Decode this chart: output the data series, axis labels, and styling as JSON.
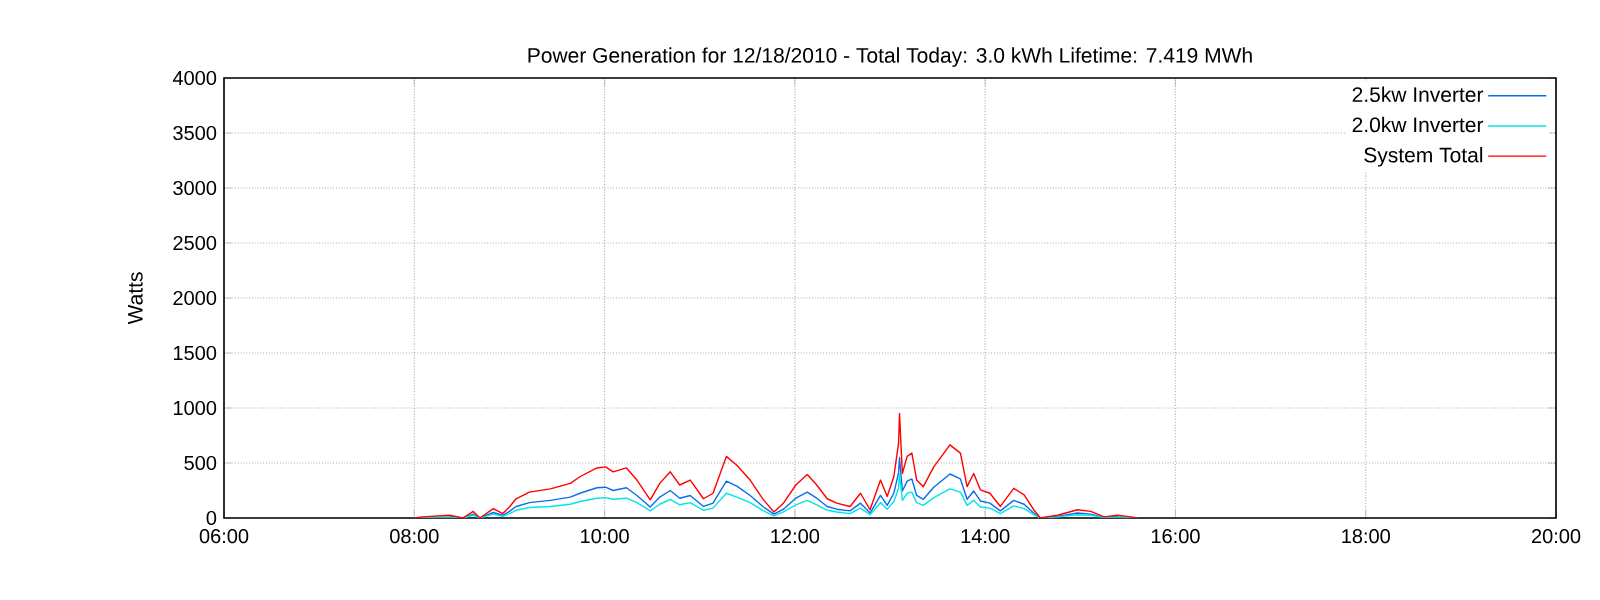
{
  "chart_data": {
    "type": "line",
    "title": "Power Generation for 12/18/2010 - Total Today: 3.0 kWh   Lifetime: 7.419 MWh",
    "ylabel": "Watts",
    "x": [
      8.0,
      8.09,
      8.37,
      8.51,
      8.62,
      8.69,
      8.83,
      8.93,
      9.0,
      9.07,
      9.21,
      9.43,
      9.64,
      9.74,
      9.92,
      10.01,
      10.09,
      10.23,
      10.34,
      10.48,
      10.58,
      10.69,
      10.79,
      10.9,
      11.04,
      11.14,
      11.28,
      11.39,
      11.53,
      11.67,
      11.78,
      11.88,
      12.01,
      12.13,
      12.23,
      12.34,
      12.44,
      12.58,
      12.69,
      12.79,
      12.9,
      12.97,
      13.04,
      13.09,
      13.1,
      13.13,
      13.18,
      13.23,
      13.28,
      13.35,
      13.46,
      13.63,
      13.74,
      13.81,
      13.88,
      13.95,
      14.05,
      14.16,
      14.3,
      14.41,
      14.51,
      14.58,
      14.76,
      14.97,
      15.11,
      15.25,
      15.39,
      15.53,
      15.6
    ],
    "series": [
      {
        "name": "2.5kw Inverter",
        "color": "#0a6cf0",
        "values": [
          null,
          null,
          15,
          0,
          35,
          0,
          50,
          25,
          60,
          105,
          140,
          160,
          190,
          225,
          275,
          280,
          250,
          275,
          205,
          100,
          190,
          250,
          180,
          205,
          105,
          135,
          335,
          290,
          205,
          100,
          35,
          80,
          180,
          235,
          180,
          105,
          80,
          65,
          135,
          45,
          205,
          115,
          225,
          410,
          550,
          245,
          335,
          355,
          205,
          170,
          280,
          400,
          355,
          170,
          245,
          155,
          135,
          65,
          160,
          125,
          45,
          0,
          15,
          45,
          35,
          5,
          15,
          null,
          null
        ]
      },
      {
        "name": "2.0kw Inverter",
        "color": "#00e5e5",
        "values": [
          0,
          5,
          10,
          0,
          25,
          0,
          35,
          15,
          40,
          70,
          95,
          105,
          125,
          150,
          180,
          185,
          170,
          180,
          140,
          65,
          125,
          170,
          120,
          140,
          70,
          90,
          225,
          190,
          140,
          65,
          20,
          55,
          120,
          160,
          120,
          70,
          55,
          40,
          90,
          30,
          140,
          80,
          150,
          270,
          400,
          160,
          225,
          235,
          140,
          115,
          185,
          265,
          235,
          115,
          160,
          100,
          90,
          40,
          110,
          85,
          30,
          0,
          10,
          30,
          25,
          5,
          10,
          5,
          0
        ]
      },
      {
        "name": "System Total",
        "color": "#ff0000",
        "values": [
          0,
          10,
          25,
          0,
          60,
          0,
          85,
          40,
          100,
          175,
          235,
          265,
          315,
          375,
          455,
          465,
          420,
          455,
          345,
          165,
          315,
          420,
          300,
          345,
          175,
          225,
          560,
          480,
          345,
          165,
          55,
          135,
          300,
          395,
          300,
          175,
          135,
          105,
          225,
          75,
          345,
          195,
          375,
          680,
          950,
          405,
          560,
          590,
          345,
          285,
          465,
          665,
          590,
          285,
          405,
          255,
          225,
          105,
          270,
          210,
          75,
          0,
          25,
          75,
          60,
          10,
          25,
          10,
          0
        ]
      }
    ],
    "xlim": [
      6,
      20
    ],
    "xticks": [
      {
        "value": 6,
        "label": "06:00"
      },
      {
        "value": 8,
        "label": "08:00"
      },
      {
        "value": 10,
        "label": "10:00"
      },
      {
        "value": 12,
        "label": "12:00"
      },
      {
        "value": 14,
        "label": "14:00"
      },
      {
        "value": 16,
        "label": "16:00"
      },
      {
        "value": 18,
        "label": "18:00"
      },
      {
        "value": 20,
        "label": "20:00"
      }
    ],
    "ylim": [
      0,
      4000
    ],
    "yticks": [
      0,
      500,
      1000,
      1500,
      2000,
      2500,
      3000,
      3500,
      4000
    ],
    "grid": true,
    "legend": "top right",
    "line_style": "solid"
  }
}
